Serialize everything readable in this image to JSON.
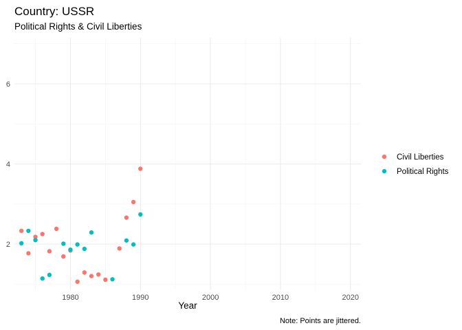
{
  "chart_data": {
    "type": "scatter",
    "title": "Country: USSR",
    "subtitle": "Political Rights & Civil Liberties",
    "xlabel": "Year",
    "ylabel": "",
    "caption": "Note: Points are jittered.",
    "xlim": [
      1972,
      2021.5
    ],
    "ylim": [
      0.85,
      7.15
    ],
    "x_ticks": [
      1980,
      1990,
      2000,
      2010,
      2020
    ],
    "y_ticks": [
      2,
      4,
      6
    ],
    "grid": true,
    "legend_position": "right",
    "series": [
      {
        "name": "Civil Liberties",
        "color": "#F8766D",
        "points": [
          [
            1973,
            2.33
          ],
          [
            1974,
            1.77
          ],
          [
            1975,
            2.18
          ],
          [
            1976,
            2.25
          ],
          [
            1977,
            1.82
          ],
          [
            1978,
            2.38
          ],
          [
            1979,
            1.69
          ],
          [
            1980,
            1.84
          ],
          [
            1981,
            1.06
          ],
          [
            1982,
            1.29
          ],
          [
            1983,
            1.2
          ],
          [
            1984,
            1.24
          ],
          [
            1985,
            1.11
          ],
          [
            1987,
            1.89
          ],
          [
            1988,
            2.66
          ],
          [
            1989,
            3.05
          ],
          [
            1990,
            3.88
          ]
        ]
      },
      {
        "name": "Political Rights",
        "color": "#00BFC4",
        "points": [
          [
            1973,
            2.02
          ],
          [
            1974,
            2.33
          ],
          [
            1975,
            2.1
          ],
          [
            1976,
            1.14
          ],
          [
            1977,
            1.23
          ],
          [
            1979,
            2.01
          ],
          [
            1980,
            1.86
          ],
          [
            1981,
            1.99
          ],
          [
            1982,
            1.88
          ],
          [
            1983,
            2.29
          ],
          [
            1986,
            1.12
          ],
          [
            1988,
            2.09
          ],
          [
            1989,
            1.99
          ],
          [
            1990,
            2.74
          ]
        ]
      }
    ]
  }
}
